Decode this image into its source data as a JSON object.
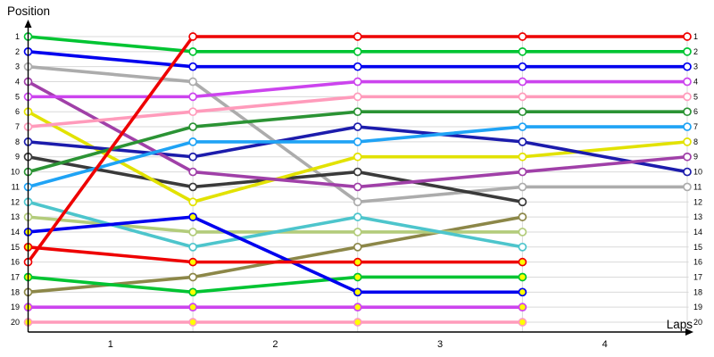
{
  "chart_data": {
    "type": "line",
    "subtype": "race-position-bump-chart",
    "title": "",
    "ylabel": "Position",
    "xlabel": "Laps",
    "y_axis_inverted": true,
    "ylim": [
      1,
      20
    ],
    "grid": true,
    "legend": "none",
    "columns": [
      0,
      1,
      2,
      3,
      4
    ],
    "x_tick_labels": [
      "1",
      "2",
      "3",
      "4"
    ],
    "x_ticks_between_columns": true,
    "y_tick_labels_left": [
      "1",
      "2",
      "3",
      "4",
      "5",
      "6",
      "7",
      "8",
      "9",
      "10",
      "11",
      "12",
      "13",
      "14",
      "15",
      "16",
      "17",
      "18",
      "19",
      "20"
    ],
    "y_tick_labels_right": [
      "1",
      "2",
      "3",
      "4",
      "5",
      "6",
      "7",
      "8",
      "9",
      "10",
      "11",
      "12",
      "13",
      "14",
      "15",
      "16",
      "17",
      "18",
      "19",
      "20"
    ],
    "colors": {
      "grid": "#D9D9D9",
      "axis": "#000000",
      "marker_fill_default": "#FFFFFF",
      "marker_fill_second_car": "#FFFF00"
    },
    "series": [
      {
        "name": "silver",
        "color": "#ACACAC",
        "marker_fill": "#FFFFFF",
        "positions": [
          3,
          4,
          12,
          11,
          11
        ]
      },
      {
        "name": "dark-gray",
        "color": "#3A3A3A",
        "marker_fill": "#FFFFFF",
        "positions": [
          9,
          11,
          10,
          12,
          null
        ]
      },
      {
        "name": "olive",
        "color": "#8C8748",
        "marker_fill": "#FFFFFF",
        "positions": [
          18,
          17,
          15,
          13,
          null
        ]
      },
      {
        "name": "yellow-green",
        "color": "#B3CC7B",
        "marker_fill": "#FFFFFF",
        "positions": [
          13,
          14,
          14,
          14,
          null
        ]
      },
      {
        "name": "turquoise",
        "color": "#4DC5CC",
        "marker_fill": "#FFFFFF",
        "positions": [
          12,
          15,
          13,
          15,
          null
        ]
      },
      {
        "name": "yellow",
        "color": "#E2E200",
        "marker_fill": "#FFFFFF",
        "positions": [
          6,
          12,
          9,
          9,
          8
        ]
      },
      {
        "name": "navy",
        "color": "#1C1CAC",
        "marker_fill": "#FFFFFF",
        "positions": [
          8,
          9,
          7,
          8,
          10
        ]
      },
      {
        "name": "purple",
        "color": "#A040A8",
        "marker_fill": "#FFFFFF",
        "positions": [
          4,
          10,
          11,
          10,
          9
        ]
      },
      {
        "name": "dark-green",
        "color": "#2B9334",
        "marker_fill": "#FFFFFF",
        "positions": [
          10,
          7,
          6,
          6,
          6
        ]
      },
      {
        "name": "sky-blue",
        "color": "#1FA3F5",
        "marker_fill": "#FFFFFF",
        "positions": [
          11,
          8,
          8,
          7,
          7
        ]
      },
      {
        "name": "pink",
        "color": "#FF9BBB",
        "marker_fill": "#FFFFFF",
        "positions": [
          7,
          6,
          5,
          5,
          5
        ]
      },
      {
        "name": "violet",
        "color": "#CC44EE",
        "marker_fill": "#FFFFFF",
        "positions": [
          5,
          5,
          4,
          4,
          4
        ]
      },
      {
        "name": "green",
        "color": "#00C432",
        "marker_fill": "#FFFFFF",
        "positions": [
          1,
          2,
          2,
          2,
          2
        ]
      },
      {
        "name": "blue",
        "color": "#0000EE",
        "marker_fill": "#FFFFFF",
        "positions": [
          2,
          3,
          3,
          3,
          3
        ]
      },
      {
        "name": "pink-2",
        "color": "#FF9BBB",
        "marker_fill": "#FFFF00",
        "positions": [
          20,
          20,
          20,
          20,
          null
        ]
      },
      {
        "name": "violet-2",
        "color": "#CC44EE",
        "marker_fill": "#FFFF00",
        "positions": [
          19,
          19,
          19,
          19,
          null
        ]
      },
      {
        "name": "green-2",
        "color": "#00C432",
        "marker_fill": "#FFFF00",
        "positions": [
          17,
          18,
          17,
          17,
          null
        ]
      },
      {
        "name": "blue-2",
        "color": "#0000EE",
        "marker_fill": "#FFFF00",
        "positions": [
          14,
          13,
          18,
          18,
          null
        ]
      },
      {
        "name": "red-2",
        "color": "#EE0000",
        "marker_fill": "#FFFF00",
        "positions": [
          15,
          16,
          16,
          16,
          null
        ]
      },
      {
        "name": "red",
        "color": "#EE0000",
        "marker_fill": "#FFFFFF",
        "positions": [
          16,
          1,
          1,
          1,
          1
        ]
      }
    ]
  }
}
